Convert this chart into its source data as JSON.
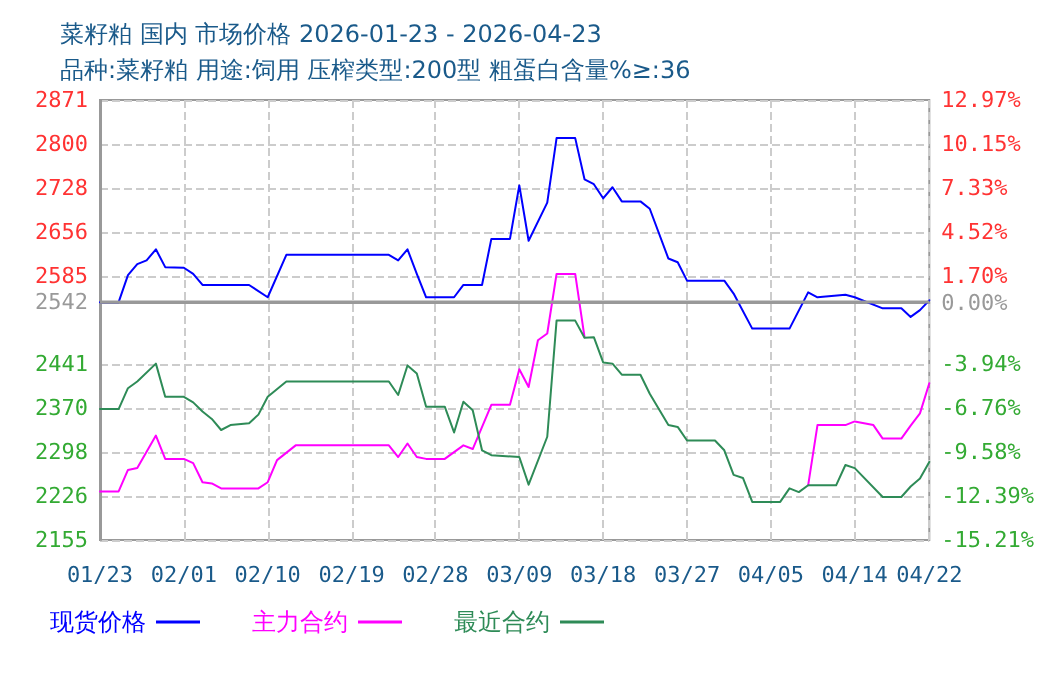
{
  "chart_data": {
    "type": "line",
    "title": "菜籽粕 国内 市场价格 2026-01-23 - 2026-04-23",
    "subtitle": "品种:菜籽粕 用途:饲用 压榨类型:200型 粗蛋白含量%≥:36",
    "xlim": [
      "2026-01-23",
      "2026-04-22"
    ],
    "xticks": [
      {
        "value": "2026-01-23",
        "label": "01/23"
      },
      {
        "value": "2026-02-01",
        "label": "02/01"
      },
      {
        "value": "2026-02-10",
        "label": "02/10"
      },
      {
        "value": "2026-02-19",
        "label": "02/19"
      },
      {
        "value": "2026-02-28",
        "label": "02/28"
      },
      {
        "value": "2026-03-09",
        "label": "03/09"
      },
      {
        "value": "2026-03-18",
        "label": "03/18"
      },
      {
        "value": "2026-03-27",
        "label": "03/27"
      },
      {
        "value": "2026-04-05",
        "label": "04/05"
      },
      {
        "value": "2026-04-14",
        "label": "04/14"
      },
      {
        "value": "2026-04-22",
        "label": "04/22"
      }
    ],
    "ylim": [
      2155,
      2871
    ],
    "yticks": [
      2155,
      2226,
      2298,
      2370,
      2441,
      2542,
      2585,
      2656,
      2728,
      2800,
      2871
    ],
    "y2lim": [
      -15.21,
      12.97
    ],
    "y2ticks": [
      {
        "value": -15.21,
        "label": "-15.21%"
      },
      {
        "value": -12.39,
        "label": "-12.39%"
      },
      {
        "value": -9.58,
        "label": "-9.58%"
      },
      {
        "value": -6.76,
        "label": "-6.76%"
      },
      {
        "value": -3.94,
        "label": "-3.94%"
      },
      {
        "value": 0,
        "label": "0.00%"
      },
      {
        "value": 1.7,
        "label": "1.70%"
      },
      {
        "value": 4.52,
        "label": "4.52%"
      },
      {
        "value": 7.33,
        "label": "7.33%"
      },
      {
        "value": 10.15,
        "label": "10.15%"
      },
      {
        "value": 12.97,
        "label": "12.97%"
      }
    ],
    "ref_lines": [
      {
        "axis": "y",
        "value": 2542,
        "color": "#999999",
        "line_style": "solid"
      }
    ],
    "grid": true,
    "legend": "bottom left",
    "marker": "none",
    "line_style": "solid",
    "series": [
      {
        "name": "现货价格",
        "color": "#0000ff",
        "x": [
          "2026-01-23",
          "2026-01-25",
          "2026-01-26",
          "2026-01-27",
          "2026-01-28",
          "2026-01-29",
          "2026-01-30",
          "2026-02-01",
          "2026-02-02",
          "2026-02-03",
          "2026-02-08",
          "2026-02-10",
          "2026-02-12",
          "2026-02-23",
          "2026-02-24",
          "2026-02-25",
          "2026-02-26",
          "2026-02-27",
          "2026-03-02",
          "2026-03-03",
          "2026-03-05",
          "2026-03-06",
          "2026-03-08",
          "2026-03-09",
          "2026-03-10",
          "2026-03-12",
          "2026-03-13",
          "2026-03-15",
          "2026-03-16",
          "2026-03-17",
          "2026-03-18",
          "2026-03-19",
          "2026-03-20",
          "2026-03-22",
          "2026-03-23",
          "2026-03-25",
          "2026-03-26",
          "2026-03-27",
          "2026-03-31",
          "2026-04-01",
          "2026-04-03",
          "2026-04-07",
          "2026-04-09",
          "2026-04-10",
          "2026-04-13",
          "2026-04-14",
          "2026-04-17",
          "2026-04-19",
          "2026-04-20",
          "2026-04-21",
          "2026-04-22"
        ],
        "values": [
          2542,
          2542,
          2586,
          2604,
          2610,
          2628,
          2599,
          2598,
          2588,
          2570,
          2570,
          2550,
          2619,
          2619,
          2610,
          2628,
          2588,
          2550,
          2550,
          2570,
          2570,
          2645,
          2645,
          2732,
          2642,
          2704,
          2809,
          2809,
          2742,
          2734,
          2711,
          2729,
          2706,
          2706,
          2694,
          2613,
          2607,
          2577,
          2577,
          2556,
          2499,
          2499,
          2558,
          2550,
          2554,
          2550,
          2532,
          2532,
          2518,
          2529,
          2545
        ]
      },
      {
        "name": "主力合约",
        "color": "#ff00ff",
        "x": [
          "2026-01-23",
          "2026-01-25",
          "2026-01-26",
          "2026-01-27",
          "2026-01-29",
          "2026-01-30",
          "2026-02-01",
          "2026-02-02",
          "2026-02-03",
          "2026-02-04",
          "2026-02-05",
          "2026-02-09",
          "2026-02-10",
          "2026-02-11",
          "2026-02-13",
          "2026-02-23",
          "2026-02-24",
          "2026-02-25",
          "2026-02-26",
          "2026-02-27",
          "2026-03-01",
          "2026-03-03",
          "2026-03-04",
          "2026-03-06",
          "2026-03-08",
          "2026-03-09",
          "2026-03-10",
          "2026-03-11",
          "2026-03-12",
          "2026-03-13",
          "2026-03-15",
          "2026-03-16",
          "2026-03-17",
          "2026-04-09",
          "2026-04-10",
          "2026-04-13",
          "2026-04-14",
          "2026-04-16",
          "2026-04-17",
          "2026-04-19",
          "2026-04-20",
          "2026-04-21",
          "2026-04-22"
        ],
        "values": [
          2234,
          2234,
          2269,
          2272,
          2325,
          2287,
          2287,
          2280,
          2249,
          2247,
          2239,
          2239,
          2249,
          2285,
          2309,
          2309,
          2290,
          2312,
          2290,
          2287,
          2287,
          2309,
          2303,
          2375,
          2375,
          2433,
          2404,
          2480,
          2491,
          2588,
          2588,
          2485,
          null,
          2244,
          2342,
          2342,
          2348,
          2342,
          2320,
          2320,
          2341,
          2361,
          2410
        ]
      },
      {
        "name": "最近合约",
        "color": "#2e8b57",
        "x": [
          "2026-01-23",
          "2026-01-25",
          "2026-01-26",
          "2026-01-27",
          "2026-01-29",
          "2026-01-30",
          "2026-02-01",
          "2026-02-02",
          "2026-02-03",
          "2026-02-04",
          "2026-02-05",
          "2026-02-06",
          "2026-02-08",
          "2026-02-09",
          "2026-02-10",
          "2026-02-12",
          "2026-02-23",
          "2026-02-24",
          "2026-02-25",
          "2026-02-26",
          "2026-02-27",
          "2026-03-01",
          "2026-03-02",
          "2026-03-03",
          "2026-03-04",
          "2026-03-05",
          "2026-03-06",
          "2026-03-09",
          "2026-03-10",
          "2026-03-12",
          "2026-03-13",
          "2026-03-15",
          "2026-03-16",
          "2026-03-17",
          "2026-03-18",
          "2026-03-19",
          "2026-03-20",
          "2026-03-22",
          "2026-03-23",
          "2026-03-25",
          "2026-03-26",
          "2026-03-27",
          "2026-03-30",
          "2026-03-31",
          "2026-04-01",
          "2026-04-02",
          "2026-04-03",
          "2026-04-06",
          "2026-04-07",
          "2026-04-08",
          "2026-04-09",
          "2026-04-12",
          "2026-04-13",
          "2026-04-14",
          "2026-04-17",
          "2026-04-19",
          "2026-04-20",
          "2026-04-21",
          "2026-04-22"
        ],
        "values": [
          2368,
          2368,
          2402,
          2413,
          2442,
          2388,
          2388,
          2379,
          2364,
          2352,
          2334,
          2342,
          2345,
          2359,
          2388,
          2413,
          2413,
          2391,
          2439,
          2426,
          2372,
          2372,
          2330,
          2380,
          2366,
          2301,
          2293,
          2290,
          2245,
          2323,
          2512,
          2512,
          2484,
          2485,
          2444,
          2442,
          2424,
          2424,
          2393,
          2342,
          2339,
          2317,
          2317,
          2301,
          2261,
          2256,
          2217,
          2217,
          2239,
          2233,
          2244,
          2244,
          2277,
          2272,
          2225,
          2225,
          2242,
          2255,
          2282
        ]
      }
    ]
  }
}
